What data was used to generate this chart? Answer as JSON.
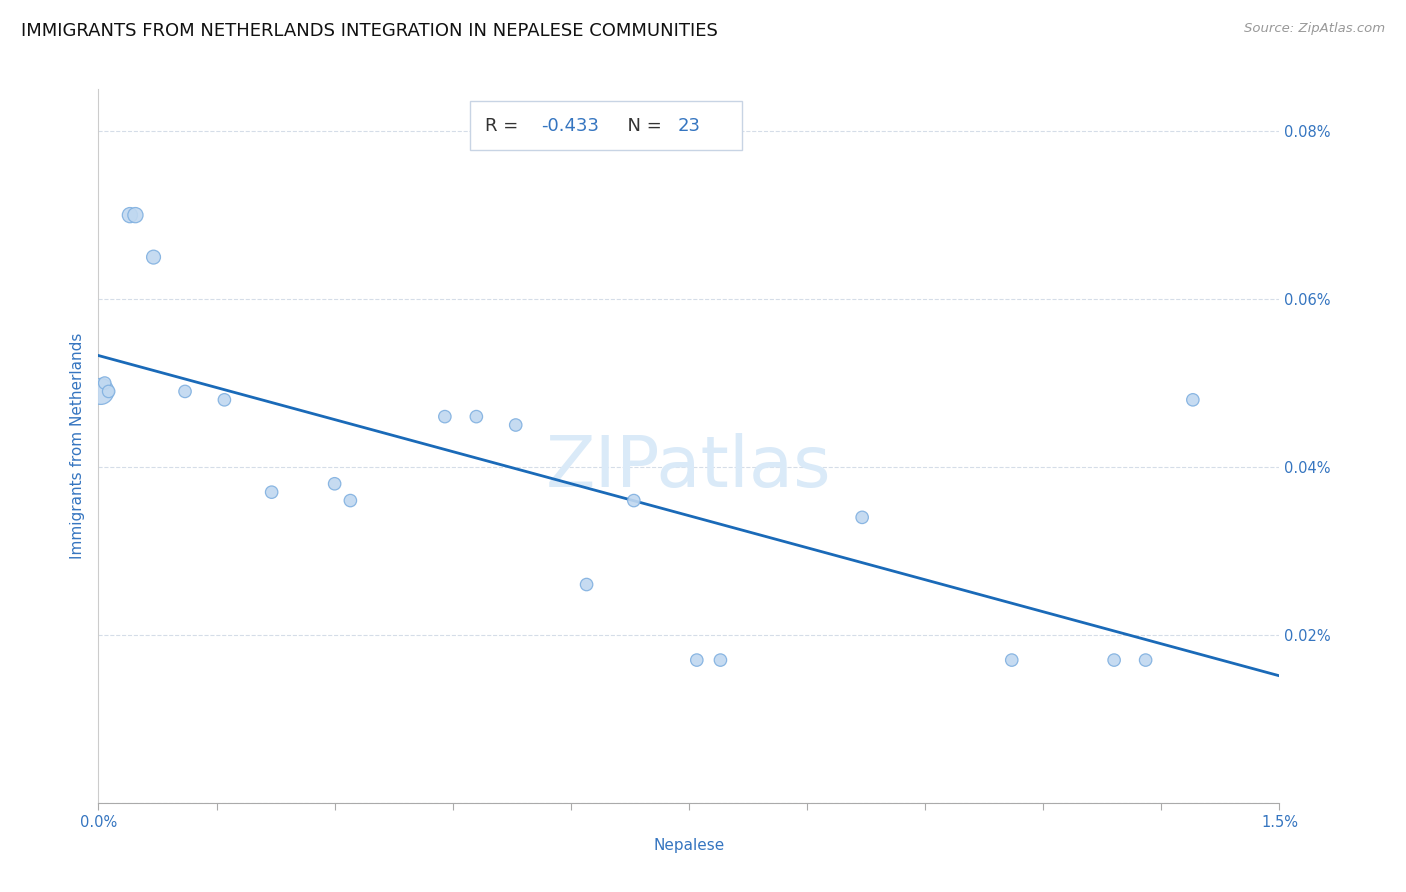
{
  "title": "IMMIGRANTS FROM NETHERLANDS INTEGRATION IN NEPALESE COMMUNITIES",
  "source": "Source: ZipAtlas.com",
  "xlabel": "Nepalese",
  "ylabel": "Immigrants from Netherlands",
  "R_value": "-0.433",
  "N_value": "23",
  "xlim": [
    0.0,
    0.015
  ],
  "ylim": [
    0.0,
    0.00085
  ],
  "xtick_positions": [
    0.0,
    0.0015,
    0.003,
    0.0045,
    0.006,
    0.0075,
    0.009,
    0.0105,
    0.012,
    0.0135,
    0.015
  ],
  "xtick_labels": [
    "0.0%",
    "",
    "",
    "",
    "",
    "",
    "",
    "",
    "",
    "",
    "1.5%"
  ],
  "ytick_positions": [
    0.0,
    0.0002,
    0.0004,
    0.0006,
    0.0008
  ],
  "ytick_labels": [
    "",
    "0.02%",
    "0.04%",
    "0.06%",
    "0.08%"
  ],
  "scatter_x": [
    3e-05,
    8e-05,
    0.00013,
    0.0004,
    0.00047,
    0.0007,
    0.0011,
    0.0016,
    0.0022,
    0.003,
    0.0032,
    0.0044,
    0.0048,
    0.0053,
    0.0062,
    0.0068,
    0.0076,
    0.0079,
    0.0097,
    0.0116,
    0.0129,
    0.0133,
    0.0139
  ],
  "scatter_y": [
    0.00049,
    0.0005,
    0.00049,
    0.0007,
    0.0007,
    0.00065,
    0.00049,
    0.00048,
    0.00037,
    0.00038,
    0.00036,
    0.00046,
    0.00046,
    0.00045,
    0.00026,
    0.00036,
    0.00017,
    0.00017,
    0.00034,
    0.00017,
    0.00017,
    0.00017,
    0.00048
  ],
  "scatter_sizes": [
    350,
    80,
    80,
    120,
    120,
    100,
    80,
    80,
    80,
    80,
    80,
    80,
    80,
    80,
    80,
    80,
    80,
    80,
    80,
    80,
    80,
    80,
    80
  ],
  "scatter_color": "#c0d8f0",
  "scatter_edgecolor": "#80b0e0",
  "line_color": "#1a6ab8",
  "grid_color": "#d5dde8",
  "background_color": "#ffffff",
  "title_fontsize": 13,
  "axis_label_fontsize": 11,
  "tick_fontsize": 10.5,
  "annotation_fontsize": 13,
  "watermark_text": "ZIPatlas",
  "watermark_fontsize": 52,
  "watermark_color": "#daeaf8"
}
